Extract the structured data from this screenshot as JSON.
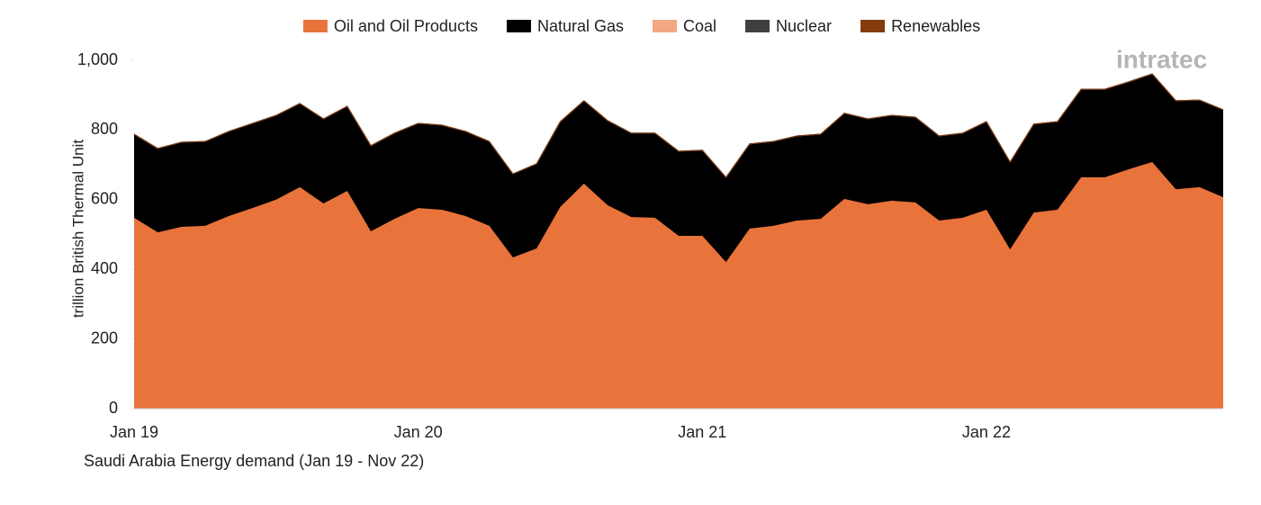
{
  "chart_data": {
    "type": "stacked_area",
    "title": "Saudi Arabia Energy demand (Jan 19 - Nov 22)",
    "y_label": "trillion British Thermal Unit",
    "logo": "intratec",
    "categories": [
      "Jan 19",
      null,
      null,
      null,
      null,
      null,
      null,
      null,
      null,
      null,
      null,
      null,
      "Jan 20",
      null,
      null,
      null,
      null,
      null,
      null,
      null,
      null,
      null,
      null,
      null,
      "Jan 21",
      null,
      null,
      null,
      null,
      null,
      null,
      null,
      null,
      null,
      null,
      null,
      "Jan 22",
      null,
      null,
      null,
      null,
      null,
      null,
      null,
      null,
      null,
      null
    ],
    "series": [
      {
        "name": "Oil and Oil Products",
        "color": "#e8743b",
        "values": [
          548,
          506,
          522,
          525,
          553,
          576,
          600,
          636,
          589,
          625,
          509,
          545,
          576,
          571,
          553,
          525,
          434,
          460,
          579,
          646,
          584,
          550,
          548,
          496,
          496,
          421,
          517,
          525,
          540,
          545,
          602,
          587,
          597,
          592,
          540,
          548,
          571,
          457,
          563,
          571,
          664,
          664,
          687,
          708,
          630,
          636,
          607
        ]
      },
      {
        "name": "Natural Gas",
        "color": "#000000",
        "values": [
          240,
          241,
          243,
          242,
          243,
          243,
          242,
          240,
          243,
          243,
          246,
          246,
          243,
          243,
          243,
          242,
          240,
          243,
          245,
          238,
          243,
          241,
          243,
          243,
          246,
          243,
          243,
          242,
          243,
          243,
          246,
          245,
          245,
          245,
          243,
          243,
          253,
          251,
          254,
          253,
          253,
          253,
          251,
          253,
          254,
          250,
          251
        ]
      },
      {
        "name": "Coal",
        "color": "#f2a883",
        "values": [
          0,
          0,
          0,
          0,
          0,
          0,
          0,
          0,
          0,
          0,
          0,
          0,
          0,
          0,
          0,
          0,
          0,
          0,
          0,
          0,
          0,
          0,
          0,
          0,
          0,
          0,
          0,
          0,
          0,
          0,
          0,
          0,
          0,
          0,
          0,
          0,
          0,
          0,
          0,
          0,
          0,
          0,
          0,
          0,
          0,
          0,
          0
        ]
      },
      {
        "name": "Nuclear",
        "color": "#404040",
        "values": [
          0,
          0,
          0,
          0,
          0,
          0,
          0,
          0,
          0,
          0,
          0,
          0,
          0,
          0,
          0,
          0,
          0,
          0,
          0,
          0,
          0,
          0,
          0,
          0,
          0,
          0,
          0,
          0,
          0,
          0,
          0,
          0,
          0,
          0,
          0,
          0,
          0,
          0,
          0,
          0,
          0,
          0,
          0,
          0,
          0,
          0,
          0
        ]
      },
      {
        "name": "Renewables",
        "color": "#843c0c",
        "values": [
          0,
          0,
          0,
          0,
          0,
          0,
          0,
          0,
          0,
          0,
          0,
          0,
          0,
          0,
          0,
          0,
          0,
          0,
          0,
          0,
          0,
          0,
          0,
          0,
          0,
          0,
          0,
          0,
          0,
          0,
          0,
          0,
          0,
          0,
          0,
          0,
          0,
          0,
          0,
          0,
          0,
          0,
          0,
          0,
          0,
          0,
          0
        ]
      }
    ],
    "ylim": [
      0,
      1000
    ],
    "yticks": [
      0,
      200,
      400,
      600,
      800,
      {
        "value": 1000,
        "label": "1,000"
      }
    ],
    "grid": false,
    "legend": "top"
  }
}
